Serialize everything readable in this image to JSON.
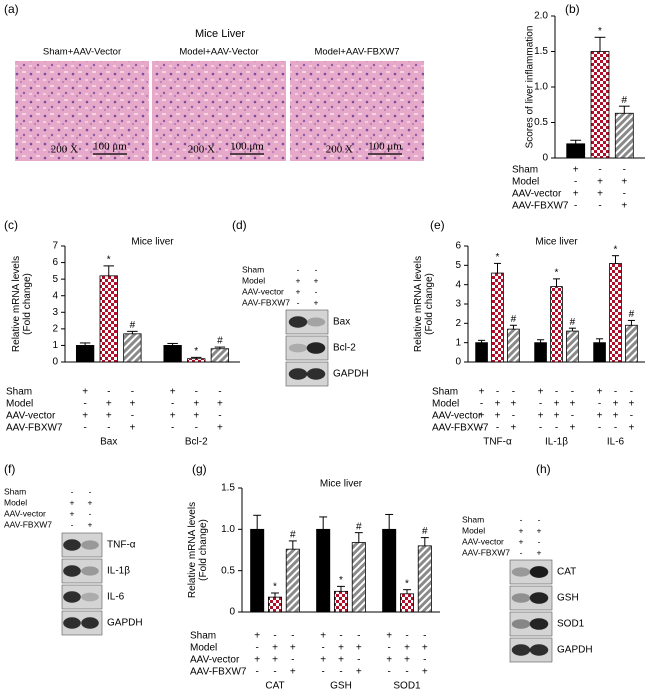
{
  "panel_a": {
    "label": "(a)",
    "title": "Mice Liver",
    "images": [
      {
        "caption": "Sham+AAV-Vector",
        "magnification": "200 X",
        "scale_bar": "100 μm"
      },
      {
        "caption": "Model+AAV-Vector",
        "magnification": "200 X",
        "scale_bar": "100 μm"
      },
      {
        "caption": "Model+AAV-FBXW7",
        "magnification": "200 X",
        "scale_bar": "100 μm"
      }
    ]
  },
  "chart_data": [
    {
      "label": "(b)",
      "type": "bar",
      "ylabel": [
        "Scores of liver inflammation"
      ],
      "ylim": [
        0,
        2
      ],
      "yticks": [
        0,
        0.5,
        {
          "value": 1,
          "label": "1.0"
        },
        1.5,
        {
          "value": 2,
          "label": "2.0"
        }
      ],
      "series": [
        {
          "color": "#000000",
          "fill": "solid",
          "values": [
            0.2
          ],
          "errors": [
            0.05
          ],
          "marks": [
            null
          ]
        },
        {
          "color": "#b0102a",
          "fill": "checker",
          "values": [
            1.5
          ],
          "errors": [
            0.2
          ],
          "marks": [
            "*"
          ]
        },
        {
          "color": "#8a8a8a",
          "fill": "hatch",
          "values": [
            0.63
          ],
          "errors": [
            0.1
          ],
          "marks": [
            "#"
          ]
        }
      ],
      "conditions": [
        {
          "label": "Sham",
          "signs": [
            "+",
            "-",
            "-"
          ]
        },
        {
          "label": "Model",
          "signs": [
            "-",
            "+",
            "+"
          ]
        },
        {
          "label": "AAV-vector",
          "signs": [
            "+",
            "+",
            "-"
          ]
        },
        {
          "label": "AAV-FBXW7",
          "signs": [
            "-",
            "-",
            "+"
          ]
        }
      ]
    },
    {
      "label": "(c)",
      "type": "bar",
      "title": "Mice liver",
      "ylabel": [
        "Relative mRNA levels",
        "(Fold change)"
      ],
      "ylim": [
        0,
        7
      ],
      "yticks": [
        0,
        1,
        2,
        3,
        4,
        5,
        6,
        7
      ],
      "categories": [
        "Bax",
        "Bcl-2"
      ],
      "series": [
        {
          "color": "#000000",
          "fill": "solid",
          "values": [
            1.0,
            1.0
          ],
          "errors": [
            0.15,
            0.12
          ],
          "marks": [
            null,
            null
          ]
        },
        {
          "color": "#b0102a",
          "fill": "checker",
          "values": [
            5.2,
            0.2
          ],
          "errors": [
            0.6,
            0.08
          ],
          "marks": [
            "*",
            "*"
          ]
        },
        {
          "color": "#8a8a8a",
          "fill": "hatch",
          "values": [
            1.7,
            0.8
          ],
          "errors": [
            0.15,
            0.1
          ],
          "marks": [
            "#",
            "#"
          ]
        }
      ],
      "conditions": [
        {
          "label": "Sham",
          "signs": [
            "+",
            "-",
            "-"
          ]
        },
        {
          "label": "Model",
          "signs": [
            "-",
            "+",
            "+"
          ]
        },
        {
          "label": "AAV-vector",
          "signs": [
            "+",
            "+",
            "-"
          ]
        },
        {
          "label": "AAV-FBXW7",
          "signs": [
            "-",
            "-",
            "+"
          ]
        }
      ]
    },
    {
      "label": "(e)",
      "type": "bar",
      "title": "Mice liver",
      "ylabel": [
        "Relative mRNA levels",
        "(Fold change)"
      ],
      "ylim": [
        0,
        6
      ],
      "yticks": [
        0,
        1,
        2,
        3,
        4,
        5,
        6
      ],
      "categories": [
        "TNF-α",
        "IL-1β",
        "IL-6"
      ],
      "series": [
        {
          "color": "#000000",
          "fill": "solid",
          "values": [
            1.0,
            1.0,
            1.0
          ],
          "errors": [
            0.12,
            0.15,
            0.2
          ],
          "marks": [
            null,
            null,
            null
          ]
        },
        {
          "color": "#b0102a",
          "fill": "checker",
          "values": [
            4.6,
            3.9,
            5.1
          ],
          "errors": [
            0.5,
            0.4,
            0.4
          ],
          "marks": [
            "*",
            "*",
            "*"
          ]
        },
        {
          "color": "#8a8a8a",
          "fill": "hatch",
          "values": [
            1.7,
            1.6,
            1.9
          ],
          "errors": [
            0.2,
            0.15,
            0.25
          ],
          "marks": [
            "#",
            "#",
            "#"
          ]
        }
      ],
      "conditions": [
        {
          "label": "Sham",
          "signs": [
            "+",
            "-",
            "-"
          ]
        },
        {
          "label": "Model",
          "signs": [
            "-",
            "+",
            "+"
          ]
        },
        {
          "label": "AAV-vector",
          "signs": [
            "+",
            "+",
            "-"
          ]
        },
        {
          "label": "AAV-FBXW7",
          "signs": [
            "-",
            "-",
            "+"
          ]
        }
      ]
    },
    {
      "label": "(g)",
      "type": "bar",
      "title": "Mice liver",
      "ylabel": [
        "Relative mRNA levels",
        "(Fold change)"
      ],
      "ylim": [
        0,
        1.5
      ],
      "yticks": [
        0,
        0.5,
        {
          "value": 1,
          "label": "1.0"
        },
        1.5
      ],
      "categories": [
        "CAT",
        "GSH",
        "SOD1"
      ],
      "series": [
        {
          "color": "#000000",
          "fill": "solid",
          "values": [
            1.0,
            1.0,
            1.0
          ],
          "errors": [
            0.17,
            0.15,
            0.18
          ],
          "marks": [
            null,
            null,
            null
          ]
        },
        {
          "color": "#b0102a",
          "fill": "checker",
          "values": [
            0.18,
            0.25,
            0.22
          ],
          "errors": [
            0.05,
            0.06,
            0.05
          ],
          "marks": [
            "*",
            "*",
            "*"
          ]
        },
        {
          "color": "#8a8a8a",
          "fill": "hatch",
          "values": [
            0.76,
            0.84,
            0.8
          ],
          "errors": [
            0.1,
            0.12,
            0.1
          ],
          "marks": [
            "#",
            "#",
            "#"
          ]
        }
      ],
      "conditions": [
        {
          "label": "Sham",
          "signs": [
            "+",
            "-",
            "-"
          ]
        },
        {
          "label": "Model",
          "signs": [
            "-",
            "+",
            "+"
          ]
        },
        {
          "label": "AAV-vector",
          "signs": [
            "+",
            "+",
            "-"
          ]
        },
        {
          "label": "AAV-FBXW7",
          "signs": [
            "-",
            "-",
            "+"
          ]
        }
      ]
    }
  ],
  "blots": [
    {
      "label": "(d)",
      "conditions": [
        {
          "label": "Sham",
          "signs": [
            "-",
            "-"
          ]
        },
        {
          "label": "Model",
          "signs": [
            "+",
            "+"
          ]
        },
        {
          "label": "AAV-vector",
          "signs": [
            "+",
            "-"
          ]
        },
        {
          "label": "AAV-FBXW7",
          "signs": [
            "-",
            "+"
          ]
        }
      ],
      "bands": [
        "Bax",
        "Bcl-2",
        "GAPDH"
      ]
    },
    {
      "label": "(f)",
      "conditions": [
        {
          "label": "Sham",
          "signs": [
            "-",
            "-"
          ]
        },
        {
          "label": "Model",
          "signs": [
            "+",
            "+"
          ]
        },
        {
          "label": "AAV-vector",
          "signs": [
            "+",
            "-"
          ]
        },
        {
          "label": "AAV-FBXW7",
          "signs": [
            "-",
            "+"
          ]
        }
      ],
      "bands": [
        "TNF-α",
        "IL-1β",
        "IL-6",
        "GAPDH"
      ]
    },
    {
      "label": "(h)",
      "conditions": [
        {
          "label": "Sham",
          "signs": [
            "-",
            "-"
          ]
        },
        {
          "label": "Model",
          "signs": [
            "+",
            "+"
          ]
        },
        {
          "label": "AAV-vector",
          "signs": [
            "+",
            "-"
          ]
        },
        {
          "label": "AAV-FBXW7",
          "signs": [
            "-",
            "+"
          ]
        }
      ],
      "bands": [
        "CAT",
        "GSH",
        "SOD1",
        "GAPDH"
      ]
    }
  ]
}
